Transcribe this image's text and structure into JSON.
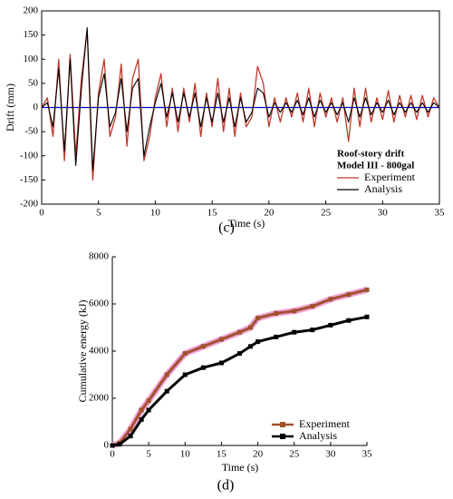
{
  "chart_data": [
    {
      "type": "line",
      "label": "(c)",
      "xlabel": "Time (s)",
      "ylabel": "Drift (mm)",
      "legend_title": [
        "Roof-story drift",
        "Model III - 800gal"
      ],
      "legend": "lower right",
      "frame": true,
      "hline": 0,
      "hline_color": "#0000cc",
      "xlim": [
        0,
        35
      ],
      "ylim": [
        -200,
        200
      ],
      "xticks": [
        0,
        5,
        10,
        15,
        20,
        25,
        30,
        35
      ],
      "yticks": [
        -200,
        -150,
        -100,
        -50,
        0,
        50,
        100,
        150,
        200
      ],
      "x": [
        0,
        0.5,
        1,
        1.5,
        2,
        2.5,
        3,
        3.5,
        4,
        4.5,
        5,
        5.5,
        6,
        6.5,
        7,
        7.5,
        8,
        8.5,
        9,
        9.5,
        10,
        10.5,
        11,
        11.5,
        12,
        12.5,
        13,
        13.5,
        14,
        14.5,
        15,
        15.5,
        16,
        16.5,
        17,
        17.5,
        18,
        18.5,
        19,
        19.5,
        20,
        20.5,
        21,
        21.5,
        22,
        22.5,
        23,
        23.5,
        24,
        24.5,
        25,
        25.5,
        26,
        26.5,
        27,
        27.5,
        28,
        28.5,
        29,
        29.5,
        30,
        30.5,
        31,
        31.5,
        32,
        32.5,
        33,
        33.5,
        34,
        34.5,
        35
      ],
      "series": [
        {
          "name": "Experiment",
          "color": "#c0392b",
          "width": 1.3,
          "values": [
            0,
            20,
            -60,
            100,
            -110,
            110,
            -100,
            60,
            160,
            -150,
            30,
            100,
            -60,
            -20,
            90,
            -80,
            60,
            100,
            -110,
            -60,
            20,
            70,
            -40,
            40,
            -50,
            40,
            -30,
            50,
            -60,
            30,
            -40,
            60,
            -50,
            40,
            -60,
            30,
            -40,
            -20,
            85,
            50,
            -40,
            20,
            -30,
            20,
            -20,
            30,
            -30,
            40,
            -40,
            30,
            -20,
            20,
            -30,
            20,
            -70,
            40,
            -40,
            40,
            -30,
            20,
            -25,
            35,
            -30,
            25,
            -20,
            25,
            -25,
            25,
            -20,
            20,
            0
          ]
        },
        {
          "name": "Analysis",
          "color": "#000000",
          "width": 1.1,
          "values": [
            0,
            10,
            -40,
            80,
            -90,
            100,
            -120,
            40,
            165,
            -130,
            20,
            70,
            -40,
            -10,
            60,
            -50,
            40,
            60,
            -100,
            -40,
            10,
            50,
            -20,
            30,
            -30,
            30,
            -20,
            30,
            -40,
            20,
            -30,
            30,
            -30,
            20,
            -40,
            20,
            -30,
            -10,
            40,
            30,
            -20,
            10,
            -10,
            10,
            -10,
            15,
            -15,
            20,
            -20,
            15,
            -10,
            10,
            -15,
            10,
            -30,
            20,
            -20,
            20,
            -15,
            10,
            -10,
            15,
            -15,
            10,
            -10,
            10,
            -10,
            10,
            -10,
            10,
            0
          ]
        }
      ]
    },
    {
      "type": "line",
      "label": "(d)",
      "xlabel": "Time (s)",
      "ylabel": "Cumulative energy (kJ)",
      "legend": "lower right",
      "frame": false,
      "markers": "square",
      "xlim": [
        0,
        35
      ],
      "ylim": [
        0,
        8000
      ],
      "xticks": [
        0,
        5,
        10,
        15,
        20,
        25,
        30,
        35
      ],
      "yticks": [
        0,
        2000,
        4000,
        6000,
        8000
      ],
      "x": [
        0,
        1,
        2.5,
        4,
        5,
        7.5,
        10,
        12.5,
        15,
        17.5,
        19,
        20,
        22.5,
        25,
        27.5,
        30,
        32.5,
        35
      ],
      "series": [
        {
          "name": "Experiment",
          "color": "#a0522d",
          "width": 3,
          "halo": "#f2a0d8",
          "values": [
            0,
            100,
            700,
            1500,
            1900,
            3000,
            3900,
            4200,
            4500,
            4800,
            5000,
            5400,
            5600,
            5700,
            5900,
            6200,
            6400,
            6600
          ]
        },
        {
          "name": "Analysis",
          "color": "#000000",
          "width": 3,
          "values": [
            0,
            50,
            400,
            1100,
            1500,
            2300,
            3000,
            3300,
            3500,
            3900,
            4200,
            4400,
            4600,
            4800,
            4900,
            5100,
            5300,
            5450
          ]
        }
      ]
    }
  ]
}
